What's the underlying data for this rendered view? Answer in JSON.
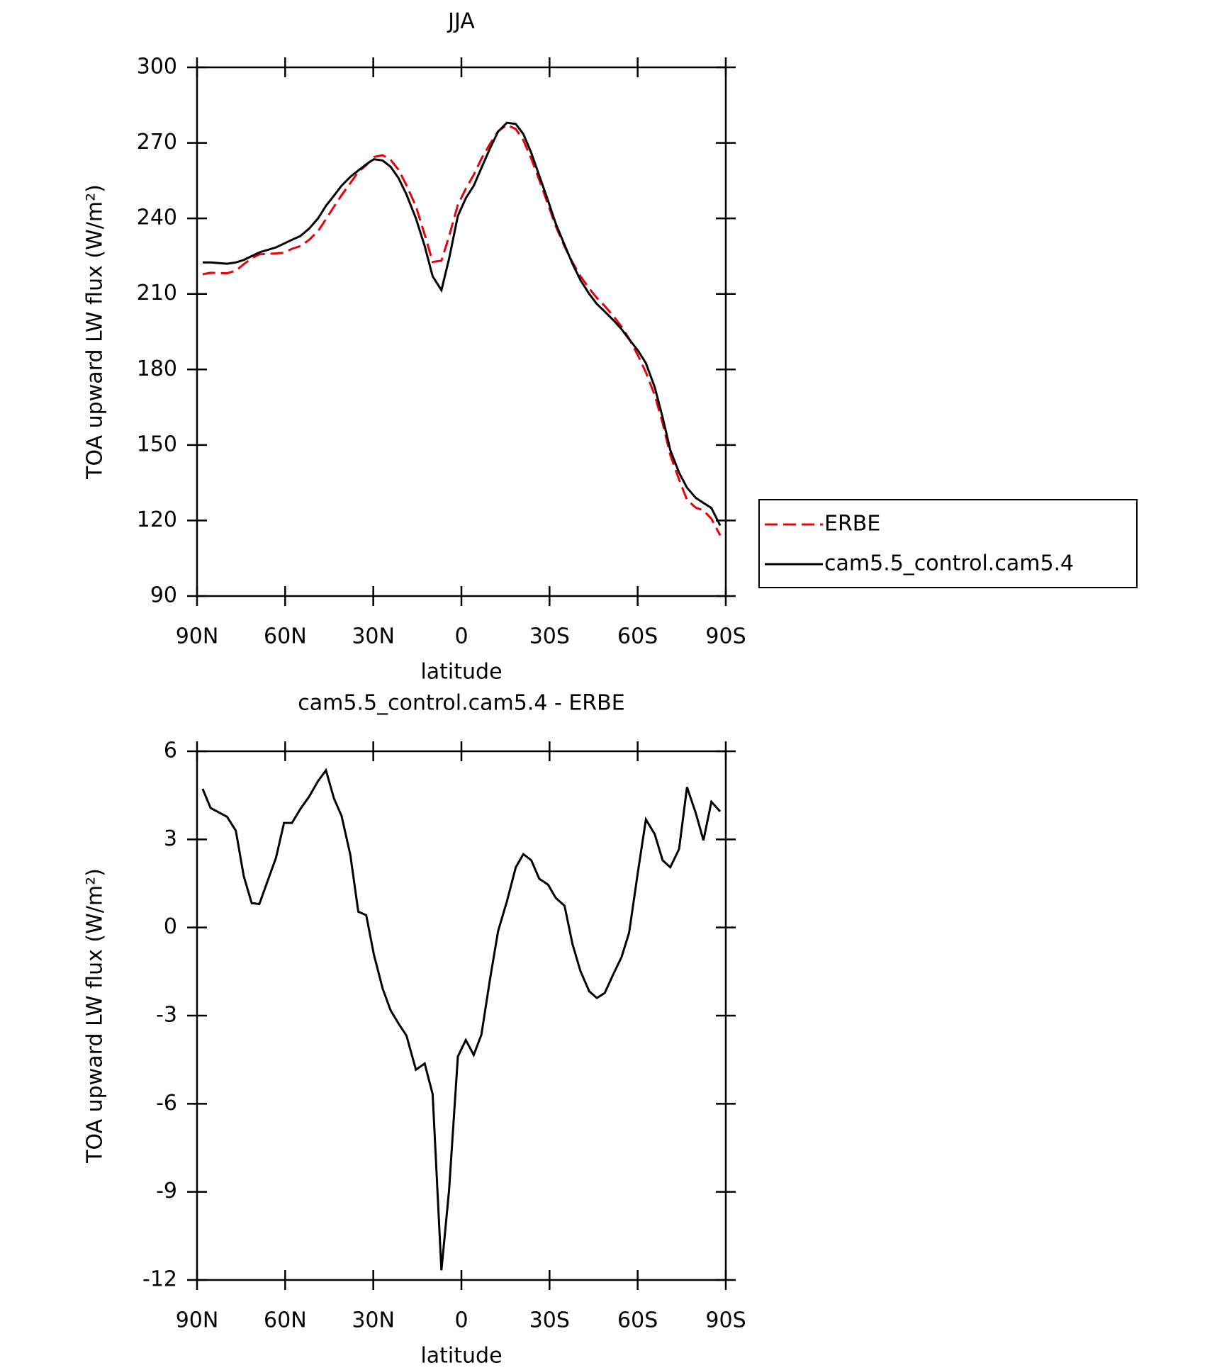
{
  "chart_data": [
    {
      "type": "line",
      "title": "JJA",
      "xlabel": "latitude",
      "ylabel": "TOA upward LW flux (W/m²)",
      "x": [
        88.1,
        85.4,
        79.8,
        76.8,
        74.1,
        71.4,
        68.8,
        63.1,
        60.4,
        57.7,
        54.8,
        51.8,
        48.8,
        46.1,
        43.4,
        40.8,
        37.8,
        35.1,
        32.4,
        29.8,
        26.8,
        24.1,
        21.4,
        18.7,
        15.5,
        12.5,
        9.8,
        6.8,
        4.2,
        1.2,
        -1.5,
        -4.2,
        -6.8,
        -9.8,
        -12.5,
        -15.5,
        -18.5,
        -21.1,
        -23.8,
        -26.5,
        -29.5,
        -32.1,
        -35.1,
        -37.8,
        -40.5,
        -43.5,
        -46.1,
        -48.8,
        -51.8,
        -54.5,
        -57.1,
        -60.1,
        -62.8,
        -65.8,
        -68.5,
        -71.1,
        -74.1,
        -76.8,
        -79.8,
        -82.4,
        -85.1,
        -88.1
      ],
      "series": [
        {
          "name": "ERBE",
          "color": "#e8000b",
          "style": "dashed",
          "values": [
            217.8,
            218.4,
            218.2,
            219.2,
            221.8,
            224.2,
            225.7,
            226.1,
            226.4,
            227.9,
            229.0,
            231.5,
            235.0,
            239.7,
            244.6,
            249.2,
            254.0,
            258.5,
            261.1,
            264.4,
            265.1,
            263.3,
            259.3,
            253.2,
            244.8,
            233.6,
            222.7,
            223.2,
            232.9,
            245.4,
            251.8,
            257.3,
            263.7,
            269.7,
            274.6,
            277.1,
            275.5,
            271.0,
            263.7,
            255.3,
            245.5,
            237.0,
            228.8,
            222.6,
            217.0,
            212.2,
            208.4,
            205.2,
            201.1,
            197.0,
            192.2,
            185.6,
            178.8,
            169.8,
            158.7,
            146.0,
            136.3,
            128.2,
            125.1,
            124.0,
            120.7,
            114.1
          ]
        },
        {
          "name": "cam5.5_control.cam5.4",
          "color": "#000000",
          "style": "solid",
          "values": [
            222.5,
            222.5,
            222,
            222.5,
            223.5,
            225,
            226.5,
            228.5,
            230,
            231.5,
            233,
            236,
            240,
            245,
            249,
            253,
            256.5,
            259,
            261.5,
            263.5,
            263,
            260.5,
            256,
            249.5,
            240,
            229,
            217,
            211.5,
            224,
            241,
            248,
            253,
            260,
            268,
            274.5,
            278,
            277.5,
            273.5,
            266,
            257,
            247,
            238,
            229.5,
            222,
            215.5,
            210,
            206,
            203,
            199.5,
            196,
            192,
            187.5,
            182.5,
            173,
            161,
            148,
            139,
            133,
            129,
            127,
            125,
            118
          ]
        }
      ],
      "xlim": [
        90,
        -90
      ],
      "xticks": [
        {
          "value": 90,
          "label": "90N"
        },
        {
          "value": 60,
          "label": "60N"
        },
        {
          "value": 30,
          "label": "30N"
        },
        0,
        {
          "value": -30,
          "label": "30S"
        },
        {
          "value": -60,
          "label": "60S"
        },
        {
          "value": -90,
          "label": "90S"
        }
      ],
      "ylim": [
        90,
        300
      ],
      "yticks": [
        90,
        120,
        150,
        180,
        210,
        240,
        270,
        300
      ],
      "legend": "right"
    },
    {
      "type": "line",
      "title": "cam5.5_control.cam5.4 - ERBE",
      "xlabel": "latitude",
      "ylabel": "TOA upward LW flux (W/m²)",
      "x": [
        88.1,
        85.4,
        79.8,
        76.8,
        74.1,
        71.4,
        68.8,
        63.1,
        60.4,
        57.7,
        54.8,
        51.8,
        48.8,
        46.1,
        43.4,
        40.8,
        37.8,
        35.1,
        32.4,
        29.8,
        26.8,
        24.1,
        21.4,
        18.7,
        15.5,
        12.5,
        9.8,
        6.8,
        4.2,
        1.2,
        -1.5,
        -4.2,
        -6.8,
        -9.8,
        -12.5,
        -15.5,
        -18.5,
        -21.1,
        -23.8,
        -26.5,
        -29.5,
        -32.1,
        -35.1,
        -37.8,
        -40.5,
        -43.5,
        -46.1,
        -48.8,
        -51.8,
        -54.5,
        -57.1,
        -60.1,
        -62.8,
        -65.8,
        -68.5,
        -71.1,
        -74.1,
        -76.8,
        -79.8,
        -82.4,
        -85.1,
        -88.1
      ],
      "series": [
        {
          "color": "#000000",
          "style": "solid",
          "values": [
            4.72,
            4.07,
            3.77,
            3.3,
            1.75,
            0.83,
            0.8,
            2.38,
            3.56,
            3.56,
            4.04,
            4.46,
            4.99,
            5.35,
            4.4,
            3.8,
            2.47,
            0.54,
            0.42,
            -0.92,
            -2.08,
            -2.82,
            -3.27,
            -3.68,
            -4.84,
            -4.63,
            -5.67,
            -11.67,
            -8.94,
            -4.39,
            -3.83,
            -4.34,
            -3.65,
            -1.72,
            -0.12,
            0.89,
            2.05,
            2.5,
            2.29,
            1.66,
            1.46,
            1.01,
            0.74,
            -0.56,
            -1.48,
            -2.17,
            -2.4,
            -2.23,
            -1.57,
            -1.01,
            -0.18,
            1.9,
            3.68,
            3.18,
            2.29,
            2.05,
            2.67,
            4.78,
            3.89,
            2.97,
            4.28,
            3.95
          ]
        }
      ],
      "xlim": [
        90,
        -90
      ],
      "xticks": [
        {
          "value": 90,
          "label": "90N"
        },
        {
          "value": 60,
          "label": "60N"
        },
        {
          "value": 30,
          "label": "30N"
        },
        0,
        {
          "value": -30,
          "label": "30S"
        },
        {
          "value": -60,
          "label": "60S"
        },
        {
          "value": -90,
          "label": "90S"
        }
      ],
      "ylim": [
        -12,
        6
      ],
      "yticks": [
        -12,
        -9,
        -6,
        -3,
        0,
        3,
        6
      ]
    }
  ]
}
